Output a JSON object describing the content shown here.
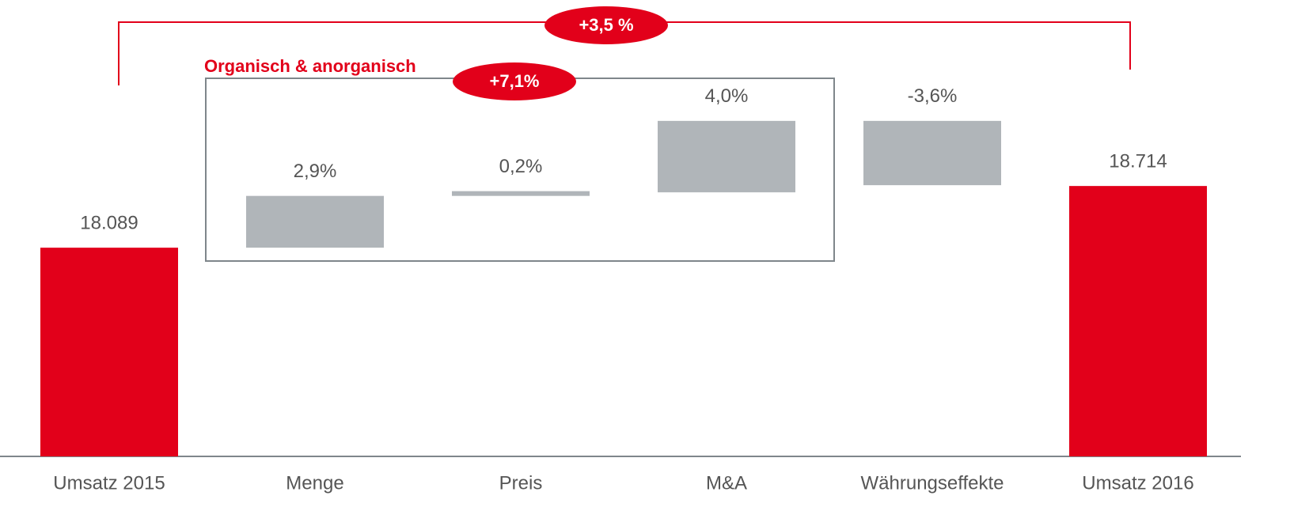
{
  "chart_data": {
    "type": "waterfall",
    "categories": [
      "Umsatz 2015",
      "Menge",
      "Preis",
      "M&A",
      "Währungseffekte",
      "Umsatz 2016"
    ],
    "values": [
      18089,
      2.9,
      0.2,
      4.0,
      -3.6,
      18714
    ],
    "value_labels": [
      "18.089",
      "2,9%",
      "0,2%",
      "4,0%",
      "-3,6%",
      "18.714"
    ],
    "total_color": "#e2001a",
    "delta_color": "#b0b5b9",
    "ylim": [
      15975,
      19300
    ],
    "annotations": {
      "total_change": "+3,5 %",
      "group_label": "Organisch & anorganisch",
      "group_change": "+7,1%"
    }
  }
}
